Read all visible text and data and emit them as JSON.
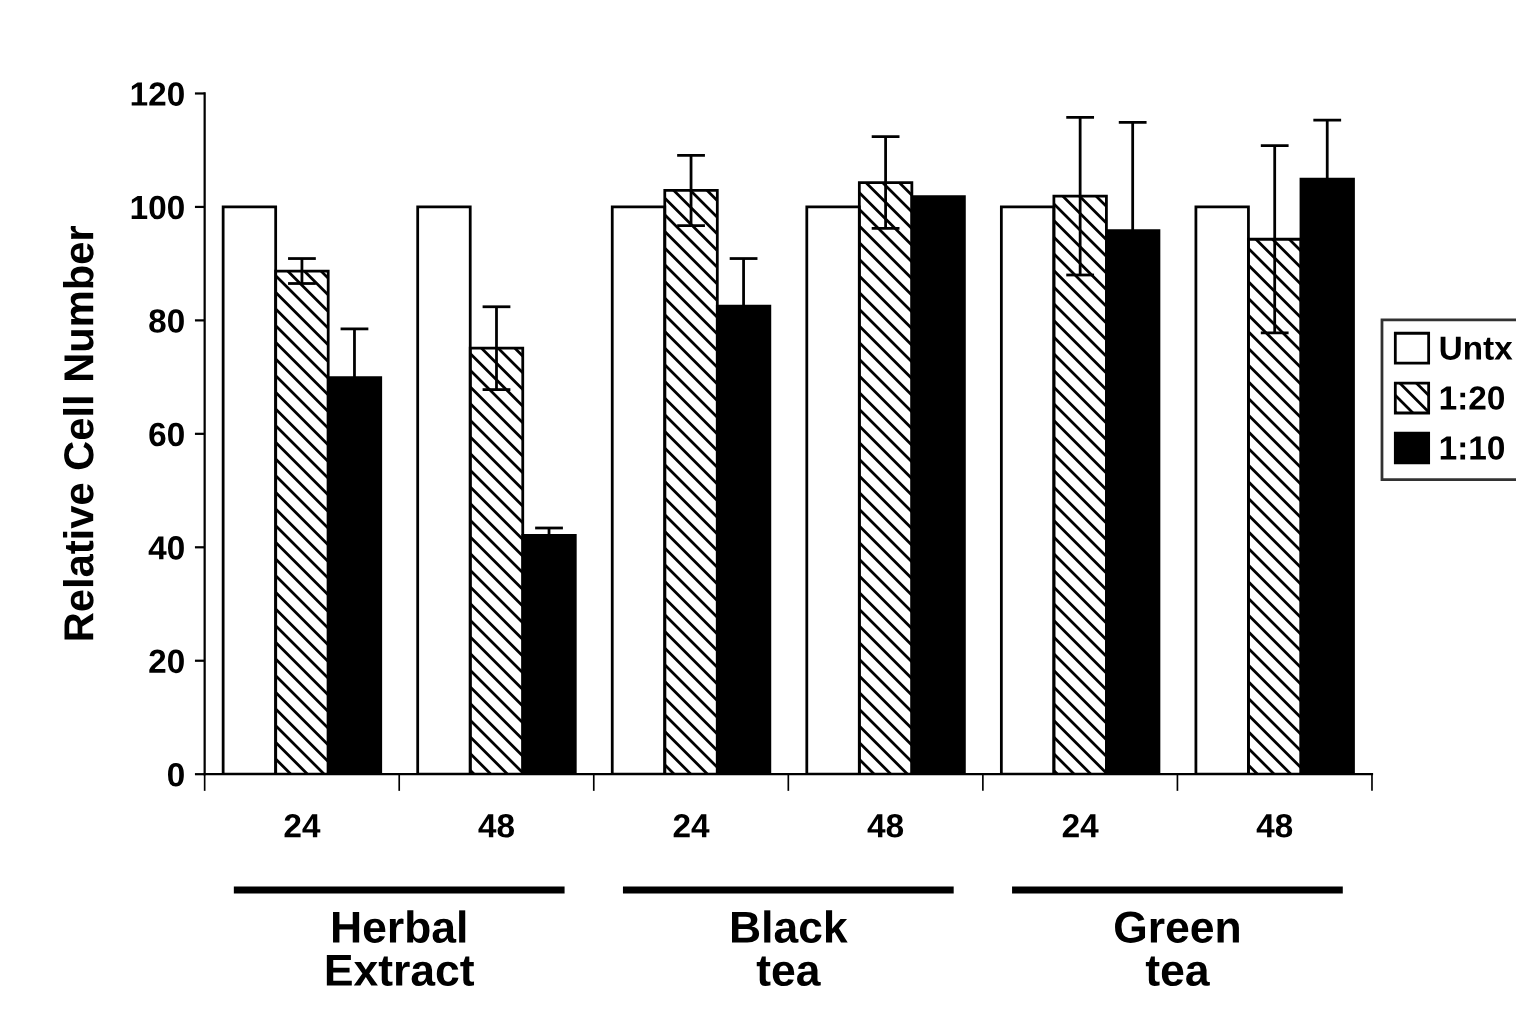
{
  "chart_data": {
    "type": "bar",
    "ylabel": "Relative Cell Number",
    "categories": [
      "24",
      "48",
      "24",
      "48",
      "24",
      "48"
    ],
    "series": [
      {
        "name": "Untx",
        "color": "#ffffff",
        "values": [
          100,
          100,
          100,
          100,
          100,
          100
        ]
      },
      {
        "name": "1:20",
        "color": "#000000",
        "values": [
          88.7,
          75.1,
          102.9,
          104.3,
          101.9,
          94.3
        ],
        "errors": [
          2.2,
          7.3,
          6.2,
          8.1,
          13.9,
          16.5
        ]
      },
      {
        "name": "1:10",
        "color": "#000000",
        "values": [
          69.9,
          42.1,
          82.5,
          101.8,
          95.8,
          104.9
        ],
        "errors": [
          8.6,
          1.3,
          8.4,
          null,
          19.1,
          10.4
        ]
      }
    ],
    "annotations": [
      "Herbal\nExtract",
      "Black\ntea",
      "Green\ntea"
    ],
    "ylim": [
      0,
      120
    ],
    "yticks": [
      0,
      20,
      40,
      60,
      80,
      100,
      120
    ],
    "grid": false,
    "legend": "right"
  }
}
